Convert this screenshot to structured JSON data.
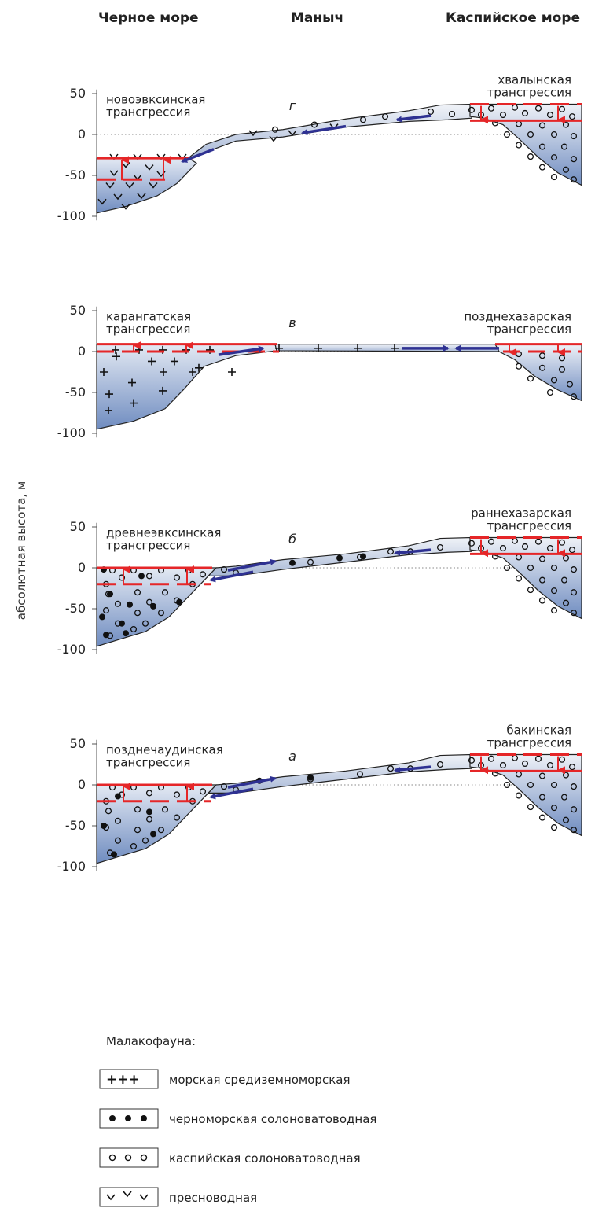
{
  "header": {
    "left": "Черное море",
    "center": "Маныч",
    "right": "Каспийское море"
  },
  "y_axis": {
    "title": "абсолютная высота, м",
    "ticks": [
      "50",
      "0",
      "-50",
      "-100"
    ]
  },
  "panels": [
    {
      "letter": "г",
      "left_label": [
        "новоэвксинская",
        "трансгрессия"
      ],
      "right_label": [
        "хвалынская",
        "трансгрессия"
      ]
    },
    {
      "letter": "в",
      "left_label": [
        "карангатская",
        "трансгрессия"
      ],
      "right_label": [
        "позднехазарская",
        "трансгрессия"
      ]
    },
    {
      "letter": "б",
      "left_label": [
        "древнеэвксинская",
        "трансгрессия"
      ],
      "right_label": [
        "раннехазарская",
        "трансгрессия"
      ]
    },
    {
      "letter": "а",
      "left_label": [
        "позднечаудинская",
        "трансгрессия"
      ],
      "right_label": [
        "бакинская",
        "трансгрессия"
      ]
    }
  ],
  "legend": {
    "title": "Малакофауна:",
    "items": [
      {
        "symbol": "+++",
        "label": "морская средиземноморская"
      },
      {
        "symbol": "dots",
        "label": "черноморская солоноватоводная"
      },
      {
        "symbol": "circles",
        "label": "каспийская солоноватоводная"
      },
      {
        "symbol": "checks",
        "label": "пресноводная"
      }
    ]
  },
  "colors": {
    "water_dark": "#6f8cc0",
    "water_light": "#e6ebf4",
    "level_line": "#e52628",
    "flow_arrow": "#2e3192"
  }
}
